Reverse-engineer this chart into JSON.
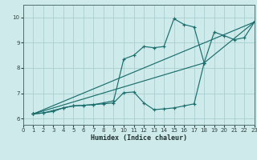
{
  "xlabel": "Humidex (Indice chaleur)",
  "xlim": [
    0,
    23
  ],
  "ylim": [
    5.75,
    10.5
  ],
  "xticks": [
    0,
    1,
    2,
    3,
    4,
    5,
    6,
    7,
    8,
    9,
    10,
    11,
    12,
    13,
    14,
    15,
    16,
    17,
    18,
    19,
    20,
    21,
    22,
    23
  ],
  "yticks": [
    6,
    7,
    8,
    9,
    10
  ],
  "bg_color": "#ceeaea",
  "grid_color": "#aacece",
  "line_color": "#1a6e6e",
  "lines": [
    {
      "x": [
        1,
        2,
        3,
        4,
        5,
        6,
        7,
        8,
        9,
        10,
        11,
        12,
        13,
        14,
        15,
        16,
        17,
        18
      ],
      "y": [
        6.18,
        6.22,
        6.28,
        6.42,
        6.5,
        6.52,
        6.55,
        6.58,
        6.62,
        7.02,
        7.05,
        6.62,
        6.35,
        6.38,
        6.42,
        6.5,
        6.58,
        8.2
      ]
    },
    {
      "x": [
        1,
        2,
        4,
        5,
        6,
        7,
        8,
        9,
        10,
        11,
        12,
        13,
        14,
        15,
        16,
        17,
        18,
        19,
        20,
        21,
        22,
        23
      ],
      "y": [
        6.18,
        6.22,
        6.42,
        6.5,
        6.52,
        6.55,
        6.62,
        6.7,
        8.35,
        8.5,
        8.85,
        8.8,
        8.85,
        9.95,
        9.72,
        9.62,
        8.2,
        9.42,
        9.28,
        9.12,
        9.2,
        9.82
      ]
    },
    {
      "x": [
        1,
        23
      ],
      "y": [
        6.18,
        9.82
      ]
    },
    {
      "x": [
        1,
        18,
        23
      ],
      "y": [
        6.18,
        8.2,
        9.82
      ]
    }
  ]
}
